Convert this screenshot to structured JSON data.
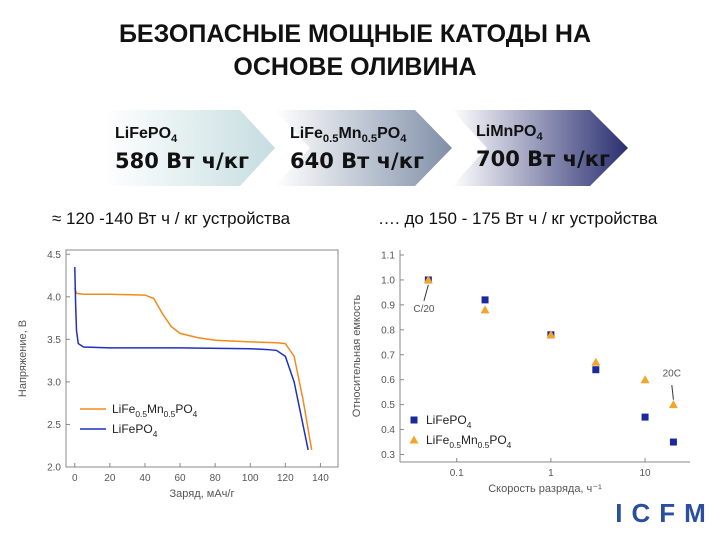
{
  "title": [
    "БЕЗОПАСНЫЕ МОЩНЫЕ КАТОДЫ НА",
    "ОСНОВЕ ОЛИВИНА"
  ],
  "banners": [
    {
      "formula": "LiFePO4",
      "energy": "580 Вт ч/кг"
    },
    {
      "formula": "LiFe0.5Mn0.5PO4",
      "energy": "640 Вт ч/кг"
    },
    {
      "formula": "LiMnPO4",
      "energy": "700 Вт ч/кг"
    }
  ],
  "captions": [
    "≈ 120 -140  Вт ч / кг устройства",
    "…. до 150 - 175 Вт ч / кг устройства"
  ],
  "logo": "ICFM",
  "chart_data": [
    {
      "type": "line",
      "xlabel": "Заряд, мАч/г",
      "ylabel": "Напряжение, В",
      "xlim": [
        -5,
        150
      ],
      "xticks": [
        0,
        20,
        40,
        60,
        80,
        100,
        120,
        140
      ],
      "ylim": [
        2.0,
        4.55
      ],
      "yticks": [
        {
          "value": 2,
          "label": "2.0"
        },
        2.5,
        {
          "value": 3,
          "label": "3.0"
        },
        3.5,
        {
          "value": 4,
          "label": "4.0"
        },
        4.5
      ],
      "legend": "lower left",
      "series": [
        {
          "name": "LiFe0.5Mn0.5PO4",
          "color": "#f28a1c",
          "x": [
            0,
            1,
            5,
            20,
            40,
            45,
            50,
            55,
            60,
            70,
            80,
            100,
            115,
            120,
            125,
            130,
            135
          ],
          "values": [
            4.1,
            4.04,
            4.03,
            4.03,
            4.02,
            3.98,
            3.8,
            3.65,
            3.57,
            3.52,
            3.49,
            3.47,
            3.46,
            3.45,
            3.3,
            2.8,
            2.2
          ]
        },
        {
          "name": "LiFePO4",
          "color": "#1f2fbf",
          "x": [
            0,
            0.5,
            1,
            2,
            5,
            20,
            60,
            100,
            110,
            115,
            120,
            125,
            130,
            133
          ],
          "values": [
            4.35,
            3.9,
            3.6,
            3.45,
            3.41,
            3.4,
            3.4,
            3.39,
            3.38,
            3.37,
            3.3,
            3.0,
            2.5,
            2.2
          ]
        }
      ]
    },
    {
      "type": "scatter",
      "xlabel": "Скорость разряда, ч⁻¹",
      "ylabel": "Относительная емкость",
      "xscale": "log",
      "xlim": [
        0.025,
        30
      ],
      "xticks": [
        0.1,
        1,
        10
      ],
      "ylim": [
        0.27,
        1.12
      ],
      "yticks": [
        0.3,
        0.4,
        0.5,
        0.6,
        0.7,
        0.8,
        0.9,
        {
          "value": 1,
          "label": "1.0"
        },
        1.1
      ],
      "legend": "lower left",
      "annotations": [
        "C/20",
        "20C"
      ],
      "series": [
        {
          "name": "LiFePO4",
          "color": "#1a2a9a",
          "marker": "square",
          "x": [
            0.05,
            0.2,
            1,
            3,
            10,
            20
          ],
          "values": [
            1.0,
            0.92,
            0.78,
            0.64,
            0.45,
            0.35
          ]
        },
        {
          "name": "LiFe0.5Mn0.5PO4",
          "color": "#f2a52a",
          "marker": "triangle",
          "x": [
            0.05,
            0.2,
            1,
            3,
            10,
            20
          ],
          "values": [
            1.0,
            0.88,
            0.78,
            0.67,
            0.6,
            0.5
          ]
        }
      ]
    }
  ]
}
